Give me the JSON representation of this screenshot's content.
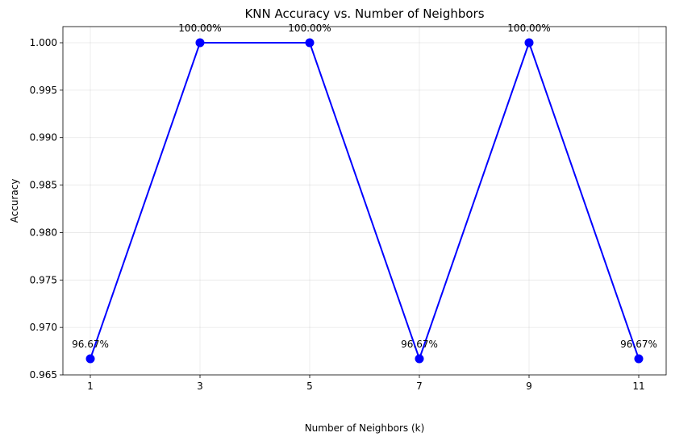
{
  "chart_data": {
    "type": "line",
    "title": "KNN Accuracy vs. Number of Neighbors",
    "xlabel": "Number of Neighbors (k)",
    "ylabel": "Accuracy",
    "x": [
      1,
      3,
      5,
      7,
      9,
      11
    ],
    "series": [
      {
        "values": [
          0.9667,
          1.0,
          1.0,
          0.9667,
          1.0,
          0.9667
        ],
        "color": "#0000ff",
        "marker": "circle"
      }
    ],
    "data_labels": [
      "96.67%",
      "100.00%",
      "100.00%",
      "96.67%",
      "100.00%",
      "96.67%"
    ],
    "xticks": [
      "1",
      "3",
      "5",
      "7",
      "9",
      "11"
    ],
    "yticks": [
      "0.965",
      "0.970",
      "0.975",
      "0.980",
      "0.985",
      "0.990",
      "0.995",
      "1.000"
    ],
    "xlim": [
      0.5,
      11.5
    ],
    "ylim": [
      0.965,
      1.0017
    ],
    "grid": true,
    "legend": "none"
  }
}
